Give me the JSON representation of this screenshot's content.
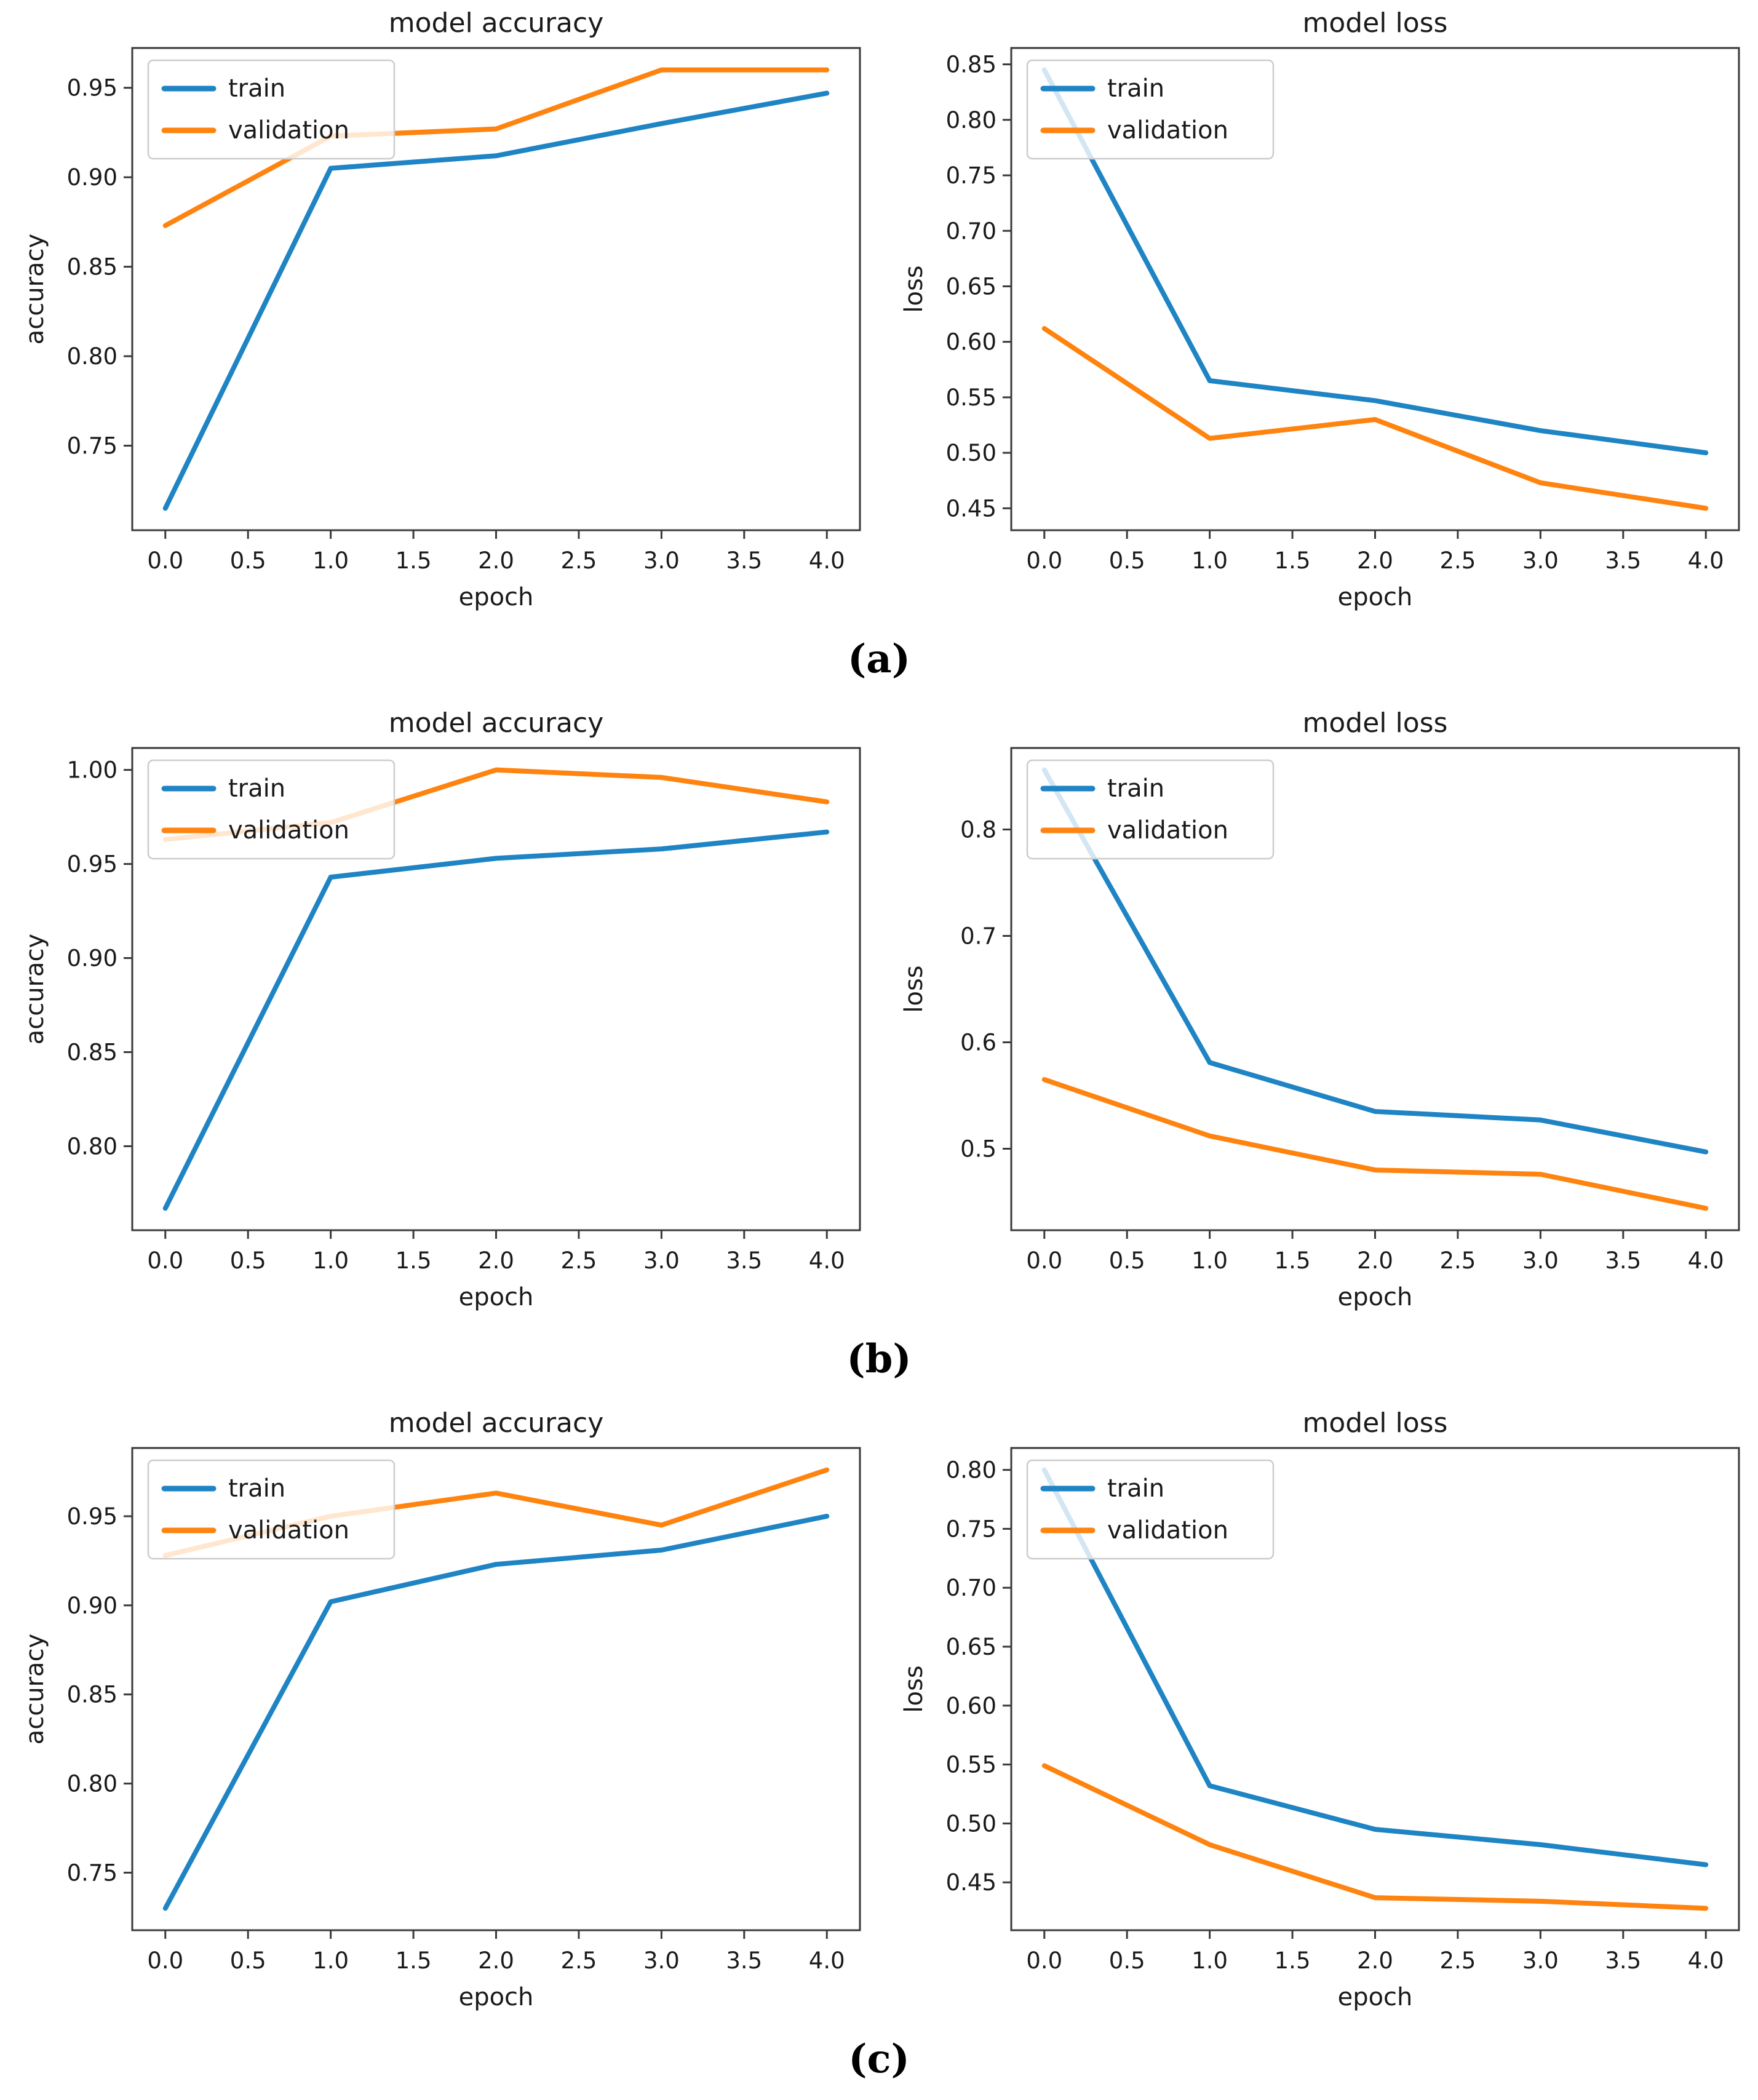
{
  "colors": {
    "train": "#1f84c4",
    "validation": "#ff830f",
    "spine": "#3a3a3a",
    "text": "#1a1a1a",
    "legend_border": "#cccccc",
    "legend_fill_alpha": 0.8
  },
  "captions": {
    "a": "(a)",
    "b": "(b)",
    "c": "(c)"
  },
  "legend": {
    "entries": [
      "train",
      "validation"
    ],
    "position": "upper left"
  },
  "chart_data": [
    {
      "id": "a-accuracy",
      "type": "line",
      "title": "model accuracy",
      "xlabel": "epoch",
      "ylabel": "accuracy",
      "x": [
        0,
        1,
        2,
        3,
        4
      ],
      "series": [
        {
          "name": "train",
          "color_key": "train",
          "values": [
            0.715,
            0.905,
            0.912,
            0.93,
            0.947
          ]
        },
        {
          "name": "validation",
          "color_key": "validation",
          "values": [
            0.873,
            0.923,
            0.927,
            0.96,
            0.96
          ]
        }
      ],
      "xticks": [
        0.0,
        0.5,
        1.0,
        1.5,
        2.0,
        2.5,
        3.0,
        3.5,
        4.0
      ],
      "xtick_decimals": 1,
      "yticks": [
        0.75,
        0.8,
        0.85,
        0.9,
        0.95
      ],
      "ytick_decimals": 2,
      "grid": false,
      "legend_position": "upper left"
    },
    {
      "id": "a-loss",
      "type": "line",
      "title": "model loss",
      "xlabel": "epoch",
      "ylabel": "loss",
      "x": [
        0,
        1,
        2,
        3,
        4
      ],
      "series": [
        {
          "name": "train",
          "color_key": "train",
          "values": [
            0.845,
            0.565,
            0.547,
            0.52,
            0.5
          ]
        },
        {
          "name": "validation",
          "color_key": "validation",
          "values": [
            0.612,
            0.513,
            0.53,
            0.473,
            0.45
          ]
        }
      ],
      "xticks": [
        0.0,
        0.5,
        1.0,
        1.5,
        2.0,
        2.5,
        3.0,
        3.5,
        4.0
      ],
      "xtick_decimals": 1,
      "yticks": [
        0.45,
        0.5,
        0.55,
        0.6,
        0.65,
        0.7,
        0.75,
        0.8,
        0.85
      ],
      "ytick_decimals": 2,
      "grid": false,
      "legend_position": "upper left"
    },
    {
      "id": "b-accuracy",
      "type": "line",
      "title": "model accuracy",
      "xlabel": "epoch",
      "ylabel": "accuracy",
      "x": [
        0,
        1,
        2,
        3,
        4
      ],
      "series": [
        {
          "name": "train",
          "color_key": "train",
          "values": [
            0.767,
            0.943,
            0.953,
            0.958,
            0.967
          ]
        },
        {
          "name": "validation",
          "color_key": "validation",
          "values": [
            0.963,
            0.972,
            1.0,
            0.996,
            0.983
          ]
        }
      ],
      "xticks": [
        0.0,
        0.5,
        1.0,
        1.5,
        2.0,
        2.5,
        3.0,
        3.5,
        4.0
      ],
      "xtick_decimals": 1,
      "yticks": [
        0.8,
        0.85,
        0.9,
        0.95,
        1.0
      ],
      "ytick_decimals": 2,
      "grid": false,
      "legend_position": "upper left"
    },
    {
      "id": "b-loss",
      "type": "line",
      "title": "model loss",
      "xlabel": "epoch",
      "ylabel": "loss",
      "x": [
        0,
        1,
        2,
        3,
        4
      ],
      "series": [
        {
          "name": "train",
          "color_key": "train",
          "values": [
            0.856,
            0.581,
            0.535,
            0.527,
            0.497
          ]
        },
        {
          "name": "validation",
          "color_key": "validation",
          "values": [
            0.565,
            0.512,
            0.48,
            0.476,
            0.444
          ]
        }
      ],
      "xticks": [
        0.0,
        0.5,
        1.0,
        1.5,
        2.0,
        2.5,
        3.0,
        3.5,
        4.0
      ],
      "xtick_decimals": 1,
      "yticks": [
        0.5,
        0.6,
        0.7,
        0.8
      ],
      "ytick_decimals": 1,
      "grid": false,
      "legend_position": "upper left"
    },
    {
      "id": "c-accuracy",
      "type": "line",
      "title": "model accuracy",
      "xlabel": "epoch",
      "ylabel": "accuracy",
      "x": [
        0,
        1,
        2,
        3,
        4
      ],
      "series": [
        {
          "name": "train",
          "color_key": "train",
          "values": [
            0.73,
            0.902,
            0.923,
            0.931,
            0.95
          ]
        },
        {
          "name": "validation",
          "color_key": "validation",
          "values": [
            0.928,
            0.95,
            0.963,
            0.945,
            0.976
          ]
        }
      ],
      "xticks": [
        0.0,
        0.5,
        1.0,
        1.5,
        2.0,
        2.5,
        3.0,
        3.5,
        4.0
      ],
      "xtick_decimals": 1,
      "yticks": [
        0.75,
        0.8,
        0.85,
        0.9,
        0.95
      ],
      "ytick_decimals": 2,
      "grid": false,
      "legend_position": "upper left"
    },
    {
      "id": "c-loss",
      "type": "line",
      "title": "model loss",
      "xlabel": "epoch",
      "ylabel": "loss",
      "x": [
        0,
        1,
        2,
        3,
        4
      ],
      "series": [
        {
          "name": "train",
          "color_key": "train",
          "values": [
            0.8,
            0.532,
            0.495,
            0.482,
            0.465
          ]
        },
        {
          "name": "validation",
          "color_key": "validation",
          "values": [
            0.549,
            0.482,
            0.437,
            0.434,
            0.428
          ]
        }
      ],
      "xticks": [
        0.0,
        0.5,
        1.0,
        1.5,
        2.0,
        2.5,
        3.0,
        3.5,
        4.0
      ],
      "xtick_decimals": 1,
      "yticks": [
        0.45,
        0.5,
        0.55,
        0.6,
        0.65,
        0.7,
        0.75,
        0.8
      ],
      "ytick_decimals": 2,
      "grid": false,
      "legend_position": "upper left"
    }
  ]
}
